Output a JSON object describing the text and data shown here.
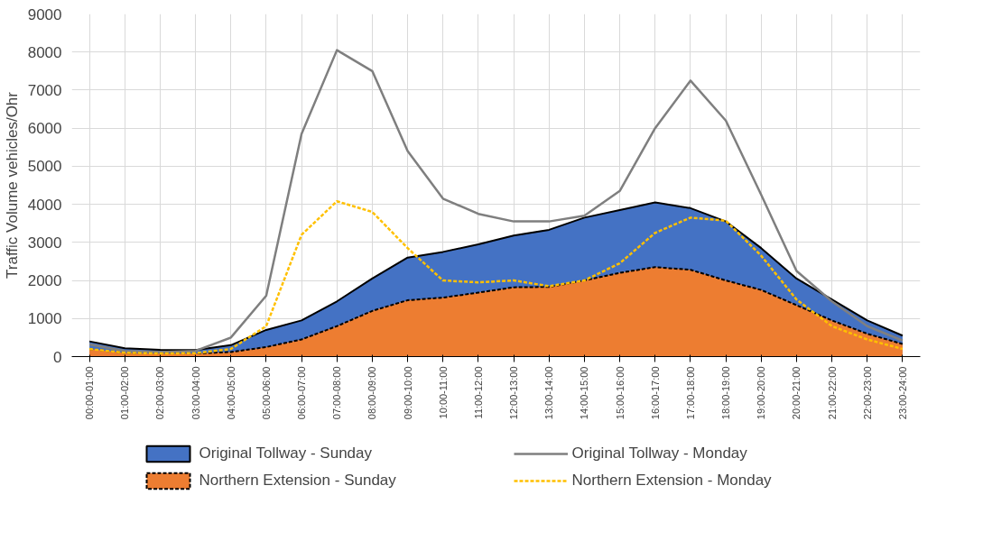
{
  "chart_data": {
    "type": "area",
    "ylabel": "Traffic Volume vehicles/Ohr",
    "categories": [
      "00:00-01:00",
      "01:00-02:00",
      "02:00-03:00",
      "03:00-04:00",
      "04:00-05:00",
      "05:00-06:00",
      "06:00-07:00",
      "07:00-08:00",
      "08:00-09:00",
      "09:00-10:00",
      "10:00-11:00",
      "11:00-12:00",
      "12:00-13:00",
      "13:00-14:00",
      "14:00-15:00",
      "15:00-16:00",
      "16:00-17:00",
      "17:00-18:00",
      "18:00-19:00",
      "19:00-20:00",
      "20:00-21:00",
      "21:00-22:00",
      "22:00-23:00",
      "23:00-24:00"
    ],
    "series": [
      {
        "name": "Original Tollway - Sunday",
        "color": "#4472c4",
        "line_style": "solid",
        "values": [
          400,
          220,
          180,
          170,
          300,
          700,
          950,
          1450,
          2050,
          2600,
          2750,
          2950,
          3180,
          3330,
          3650,
          3850,
          4050,
          3900,
          3550,
          2850,
          2050,
          1500,
          950,
          550
        ]
      },
      {
        "name": "Northern Extension - Sunday",
        "color": "#ed7d31",
        "line_style": "dashed",
        "values": [
          200,
          100,
          80,
          80,
          120,
          250,
          450,
          800,
          1200,
          1480,
          1550,
          1680,
          1820,
          1830,
          2000,
          2200,
          2350,
          2280,
          2000,
          1750,
          1350,
          950,
          600,
          330
        ]
      },
      {
        "name": "Original Tollway - Monday",
        "type": "line",
        "color": "#7f7f7f",
        "line_style": "solid",
        "values": [
          320,
          150,
          120,
          150,
          500,
          1600,
          5850,
          8050,
          7500,
          5400,
          4150,
          3750,
          3550,
          3550,
          3700,
          4350,
          6000,
          7250,
          6200,
          4250,
          2250,
          1450,
          800,
          420
        ]
      },
      {
        "name": "Northern Extension - Monday",
        "type": "line",
        "color": "#ffc000",
        "line_style": "dashed",
        "values": [
          200,
          100,
          80,
          90,
          200,
          800,
          3200,
          4080,
          3800,
          2850,
          2000,
          1950,
          2000,
          1850,
          2000,
          2450,
          3250,
          3650,
          3570,
          2650,
          1500,
          800,
          450,
          200
        ]
      }
    ],
    "ylim": [
      0,
      9000
    ],
    "yticks": [
      0,
      1000,
      2000,
      3000,
      4000,
      5000,
      6000,
      7000,
      8000,
      9000
    ],
    "grid": true,
    "legend": "bottom"
  }
}
